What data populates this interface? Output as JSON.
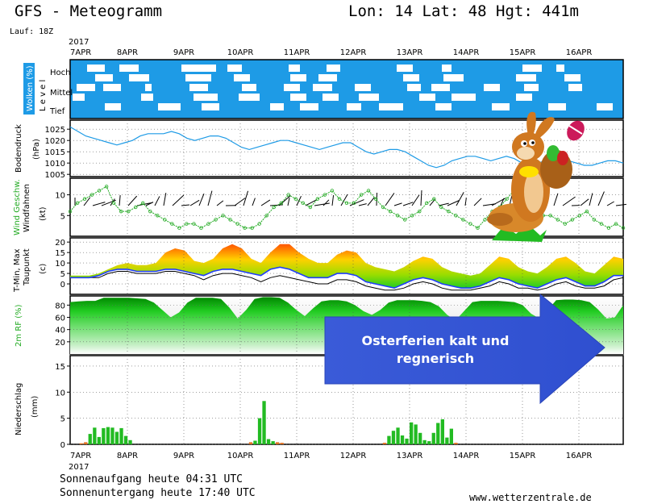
{
  "header": {
    "title": "GFS - Meteogramm",
    "location": "Lon: 14 Lat: 48 Hgt: 441m",
    "run": "Lauf: 18Z"
  },
  "footer": {
    "sunrise": "Sonnenaufgang heute 04:31 UTC",
    "sunset": "Sonnenuntergang heute 17:40 UTC",
    "site": "www.wetterzentrale.de"
  },
  "callout": {
    "line1": "Osterferien kalt und",
    "line2": "regnerisch",
    "color": "#3a5bd8"
  },
  "chart_data": {
    "type": "line",
    "year": "2017",
    "x_labels": [
      "7APR",
      "8APR",
      "9APR",
      "10APR",
      "11APR",
      "12APR",
      "13APR",
      "14APR",
      "15APR",
      "16APR"
    ],
    "panels": [
      {
        "id": "clouds",
        "ylabel": "Wolken (%)",
        "sublabel": "L e v e l",
        "levels": [
          "Hoch",
          "Mittel",
          "Tief"
        ],
        "color": "#1e9be6"
      },
      {
        "id": "pressure",
        "ylabel": "Bodendruck",
        "unit": "(hPa)",
        "yticks": [
          1005,
          1010,
          1015,
          1020,
          1025
        ],
        "ylim": [
          1004,
          1029
        ],
        "color": "#1e9be6",
        "values": [
          1026,
          1024,
          1022,
          1021,
          1020,
          1019,
          1018,
          1019,
          1020,
          1022,
          1023,
          1023,
          1023,
          1024,
          1023,
          1021,
          1020,
          1021,
          1022,
          1022,
          1021,
          1019,
          1017,
          1016,
          1017,
          1018,
          1019,
          1020,
          1020,
          1019,
          1018,
          1017,
          1016,
          1017,
          1018,
          1019,
          1019,
          1017,
          1015,
          1014,
          1015,
          1016,
          1016,
          1015,
          1013,
          1011,
          1009,
          1008,
          1009,
          1011,
          1012,
          1013,
          1013,
          1012,
          1011,
          1012,
          1013,
          1012,
          1010,
          1009,
          1010,
          1011,
          1012,
          1012,
          1011,
          1010,
          1009,
          1009,
          1010,
          1011,
          1011,
          1010
        ]
      },
      {
        "id": "wind",
        "ylabel": "Wind Geschw.",
        "ylabel2": "Windfahnen",
        "unit": "(kt)",
        "yticks": [
          5,
          10
        ],
        "ylim": [
          0,
          14
        ],
        "color": "#22aa22",
        "values": [
          6,
          8,
          9,
          10,
          11,
          12,
          8,
          6,
          6,
          7,
          8,
          6,
          5,
          4,
          3,
          2,
          3,
          3,
          2,
          3,
          4,
          5,
          4,
          3,
          2,
          2,
          3,
          5,
          7,
          8,
          10,
          9,
          8,
          7,
          9,
          10,
          11,
          9,
          8,
          8,
          10,
          11,
          9,
          7,
          6,
          5,
          4,
          5,
          6,
          8,
          9,
          7,
          6,
          5,
          4,
          3,
          2,
          4,
          6,
          7,
          9,
          11,
          10,
          8,
          6,
          5,
          5,
          4,
          3,
          4,
          5,
          6,
          4,
          3,
          2,
          3,
          2
        ]
      },
      {
        "id": "temp",
        "ylabel": "T-Min, Max",
        "ylabel2": "Taupunkt",
        "unit": "(c)",
        "yticks": [
          0,
          5,
          10,
          15,
          20
        ],
        "ylim": [
          -5,
          22
        ],
        "tmax": [
          4,
          4,
          4,
          5,
          7,
          9,
          10,
          9,
          9,
          10,
          15,
          17,
          16,
          11,
          10,
          12,
          17,
          19,
          17,
          12,
          10,
          15,
          19,
          19,
          15,
          12,
          10,
          10,
          14,
          16,
          15,
          10,
          8,
          7,
          6,
          8,
          11,
          13,
          12,
          8,
          6,
          5,
          4,
          5,
          9,
          13,
          12,
          8,
          6,
          5,
          8,
          12,
          13,
          10,
          6,
          5,
          9,
          13,
          12
        ],
        "tmin": [
          3,
          3,
          3,
          4,
          6,
          7,
          7,
          6,
          6,
          6,
          7,
          7,
          6,
          5,
          4,
          6,
          7,
          7,
          6,
          5,
          4,
          7,
          8,
          7,
          5,
          3,
          3,
          3,
          5,
          5,
          4,
          1,
          0,
          -1,
          -2,
          0,
          2,
          3,
          2,
          0,
          -1,
          -2,
          -2,
          -1,
          1,
          3,
          2,
          0,
          -1,
          -2,
          0,
          2,
          3,
          1,
          -1,
          -1,
          1,
          4,
          4
        ],
        "dewpoint": [
          3,
          3,
          3,
          3,
          5,
          6,
          6,
          5,
          5,
          5,
          6,
          6,
          5,
          4,
          2,
          4,
          5,
          5,
          4,
          3,
          1,
          3,
          4,
          3,
          2,
          1,
          0,
          0,
          2,
          2,
          1,
          -1,
          -2,
          -3,
          -3,
          -2,
          0,
          1,
          0,
          -2,
          -3,
          -3,
          -3,
          -2,
          -1,
          1,
          0,
          -2,
          -2,
          -3,
          -2,
          0,
          1,
          -1,
          -2,
          -2,
          -1,
          2,
          3
        ]
      },
      {
        "id": "rh",
        "ylabel": "2m RF (%)",
        "yticks": [
          20,
          40,
          60,
          80
        ],
        "ylim": [
          0,
          95
        ],
        "values": [
          85,
          86,
          87,
          87,
          92,
          92,
          92,
          92,
          91,
          90,
          84,
          72,
          60,
          68,
          84,
          92,
          92,
          92,
          90,
          76,
          58,
          72,
          90,
          93,
          93,
          92,
          84,
          72,
          62,
          75,
          86,
          88,
          88,
          86,
          80,
          70,
          64,
          72,
          84,
          88,
          88,
          88,
          87,
          85,
          78,
          64,
          55,
          70,
          85,
          87,
          87,
          87,
          86,
          85,
          80,
          66,
          58,
          72,
          88,
          89,
          89,
          88,
          85,
          73,
          58,
          60,
          80
        ]
      },
      {
        "id": "precip",
        "ylabel": "Niederschlag",
        "unit": "(mm)",
        "yticks": [
          0,
          5,
          10,
          15
        ],
        "ylim": [
          0,
          17
        ],
        "values": [
          0,
          0,
          0.2,
          0.4,
          2,
          3.2,
          1.4,
          3.1,
          3.3,
          3.2,
          2.4,
          3.1,
          1.6,
          0.8,
          0,
          0,
          0,
          0,
          0,
          0,
          0,
          0,
          0,
          0,
          0,
          0,
          0,
          0,
          0,
          0,
          0,
          0,
          0,
          0,
          0,
          0,
          0,
          0,
          0,
          0,
          0.4,
          0.7,
          5,
          8.3,
          1,
          0.6,
          0.4,
          0.3,
          0,
          0,
          0,
          0,
          0,
          0,
          0,
          0,
          0,
          0,
          0,
          0,
          0,
          0,
          0,
          0,
          0,
          0,
          0,
          0,
          0,
          0,
          0.3,
          1.6,
          2.6,
          3.2,
          1.7,
          1.1,
          4.2,
          3.8,
          2.2,
          0.8,
          0.6,
          2.2,
          4.1,
          4.8,
          1.3,
          3,
          0.3,
          0,
          0,
          0,
          0,
          0,
          0,
          0,
          0,
          0,
          0,
          0,
          0,
          0,
          0,
          0,
          0,
          0,
          0,
          0,
          0,
          0,
          0,
          0,
          0,
          0,
          0,
          0,
          0,
          0,
          0,
          0,
          0,
          0,
          0,
          0,
          0,
          0
        ]
      }
    ]
  }
}
